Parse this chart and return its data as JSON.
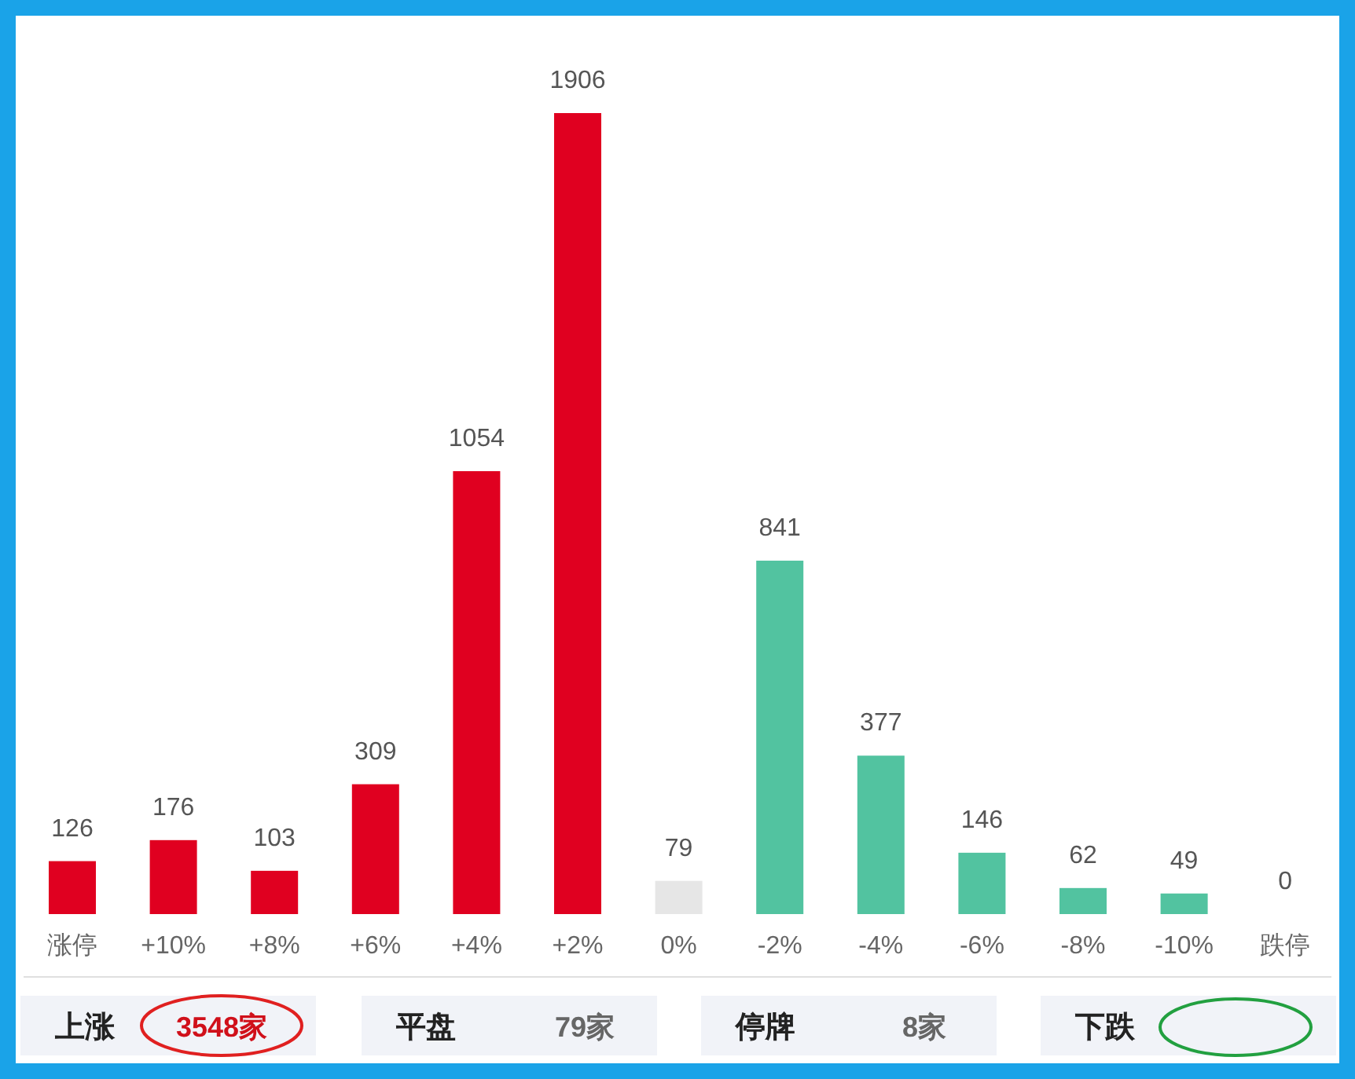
{
  "chart_data": {
    "type": "bar",
    "categories": [
      "涨停",
      "+10%",
      "+8%",
      "+6%",
      "+4%",
      "+2%",
      "0%",
      "-2%",
      "-4%",
      "-6%",
      "-8%",
      "-10%",
      "跌停"
    ],
    "values": [
      126,
      176,
      103,
      309,
      1054,
      1906,
      79,
      841,
      377,
      146,
      62,
      49,
      0
    ],
    "colors": [
      "#e00020",
      "#e00020",
      "#e00020",
      "#e00020",
      "#e00020",
      "#e00020",
      "#e6e6e6",
      "#52c3a0",
      "#52c3a0",
      "#52c3a0",
      "#52c3a0",
      "#52c3a0",
      "#52c3a0"
    ],
    "data_labels": true,
    "annotations": [
      "上涨",
      "3548家",
      "平盘",
      "79家",
      "停牌",
      "8家",
      "下跌"
    ]
  }
}
